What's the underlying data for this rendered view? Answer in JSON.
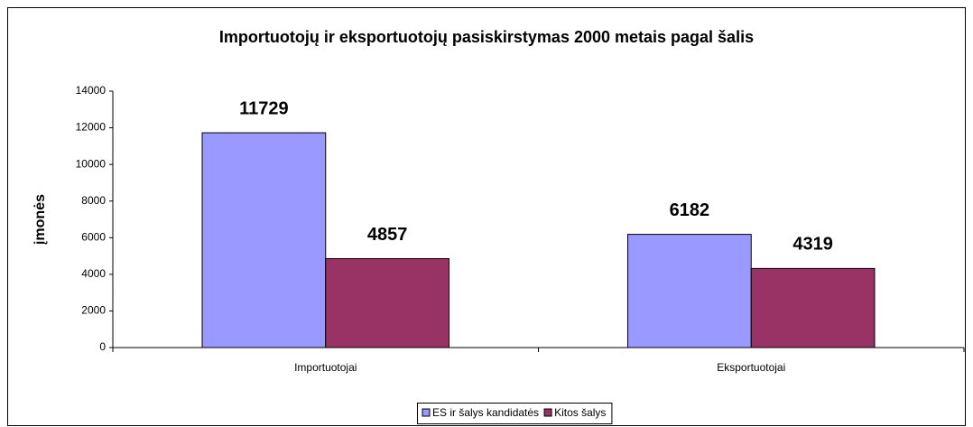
{
  "chart_data": {
    "type": "bar",
    "title": "Importuotojų ir eksportuotojų pasiskirstymas 2000 metais pagal šalis",
    "y_label": "įmonės",
    "categories": [
      "Importuotojai",
      "Eksportuotojai"
    ],
    "series": [
      {
        "name": "ES ir šalys kandidatės",
        "color": "#9999ff",
        "values": [
          11729,
          6182
        ]
      },
      {
        "name": "Kitos šalys",
        "color": "#993366",
        "values": [
          4857,
          4319
        ]
      }
    ],
    "ylim": [
      0,
      14000
    ],
    "yticks": [
      0,
      2000,
      4000,
      6000,
      8000,
      10000,
      12000,
      14000
    ],
    "grid": false,
    "legend": "bottom"
  }
}
